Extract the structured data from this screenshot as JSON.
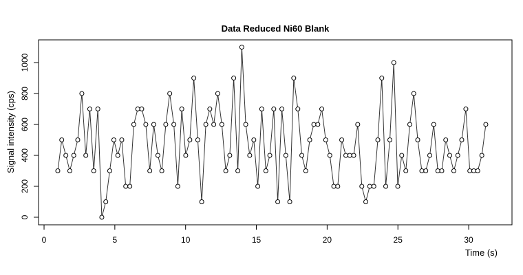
{
  "chart_data": {
    "type": "line",
    "title": "Data Reduced Ni60 Blank",
    "x_label": "Time (s)",
    "y_label": "Signal intensity (cps)",
    "x": [
      0.97,
      1.25,
      1.54,
      1.82,
      2.1,
      2.38,
      2.67,
      2.95,
      3.23,
      3.51,
      3.8,
      4.08,
      4.36,
      4.64,
      4.93,
      5.21,
      5.49,
      5.77,
      6.06,
      6.34,
      6.62,
      6.9,
      7.19,
      7.47,
      7.75,
      8.04,
      8.32,
      8.6,
      8.88,
      9.17,
      9.45,
      9.73,
      10.01,
      10.3,
      10.58,
      10.86,
      11.14,
      11.43,
      11.71,
      11.99,
      12.27,
      12.56,
      12.84,
      13.12,
      13.4,
      13.69,
      13.97,
      14.25,
      14.53,
      14.82,
      15.1,
      15.38,
      15.67,
      15.95,
      16.23,
      16.51,
      16.8,
      17.08,
      17.36,
      17.64,
      17.93,
      18.21,
      18.49,
      18.77,
      19.06,
      19.34,
      19.62,
      19.9,
      20.19,
      20.47,
      20.75,
      21.03,
      21.32,
      21.6,
      21.88,
      22.16,
      22.45,
      22.73,
      23.01,
      23.3,
      23.58,
      23.86,
      24.14,
      24.43,
      24.71,
      24.99,
      25.27,
      25.56,
      25.84,
      26.12,
      26.4,
      26.69,
      26.97,
      27.25,
      27.53,
      27.82,
      28.1,
      28.38,
      28.66,
      28.95,
      29.23,
      29.51,
      29.8,
      30.08,
      30.36,
      30.64,
      30.93,
      31.21
    ],
    "series": [
      {
        "color": "#333333",
        "values": [
          300,
          500,
          400,
          300,
          400,
          500,
          800,
          400,
          700,
          300,
          700,
          0,
          100,
          300,
          500,
          400,
          500,
          200,
          200,
          600,
          700,
          700,
          600,
          300,
          600,
          400,
          300,
          600,
          800,
          600,
          200,
          700,
          400,
          500,
          900,
          500,
          100,
          600,
          700,
          600,
          800,
          600,
          300,
          400,
          900,
          300,
          1100,
          600,
          400,
          500,
          200,
          700,
          300,
          400,
          700,
          100,
          700,
          400,
          100,
          900,
          700,
          400,
          300,
          500,
          600,
          600,
          700,
          500,
          400,
          200,
          200,
          500,
          400,
          400,
          400,
          600,
          200,
          100,
          200,
          200,
          500,
          900,
          200,
          500,
          1000,
          200,
          400,
          300,
          600,
          800,
          500,
          300,
          300,
          400,
          600,
          300,
          300,
          500,
          400,
          300,
          400,
          500,
          700,
          300,
          300,
          300,
          400,
          600
        ]
      }
    ],
    "xlim": [
      -0.39,
      33.06
    ],
    "ylim": [
      -49,
      1147
    ],
    "xticks": [
      0,
      5,
      10,
      15,
      20,
      25,
      30
    ],
    "yticks": [
      0,
      200,
      400,
      600,
      800,
      1000
    ]
  }
}
